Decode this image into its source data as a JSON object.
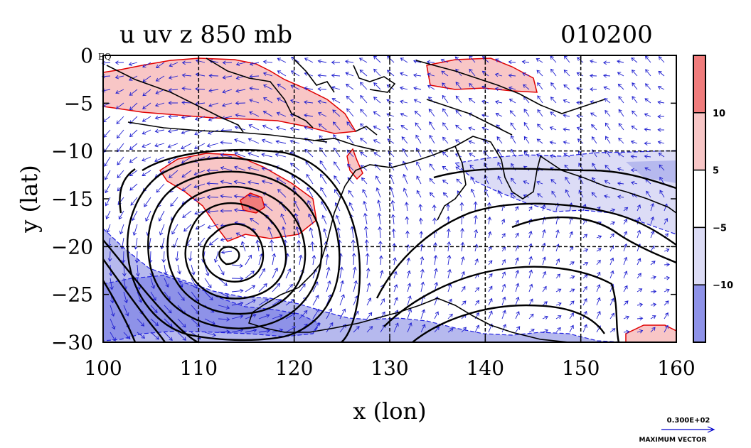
{
  "chart_data": {
    "type": "heatmap",
    "title": "u uv z 850 mb",
    "time_label": "010200",
    "xlabel": "x (lon)",
    "ylabel": "y (lat)",
    "xlim": [
      100,
      160
    ],
    "ylim": [
      -30,
      0
    ],
    "x_ticks": [
      100,
      110,
      120,
      130,
      140,
      150,
      160
    ],
    "y_ticks": [
      0,
      -5,
      -10,
      -15,
      -20,
      -25,
      -30
    ],
    "y_tick_labels": [
      "0",
      "−5",
      "−10",
      "−15",
      "−20",
      "−25",
      "−30"
    ],
    "x_tick_labels": [
      "100",
      "110",
      "120",
      "130",
      "140",
      "150",
      "160"
    ],
    "eq_label": "EQ",
    "grid_x": [
      110,
      120,
      130,
      140,
      150
    ],
    "grid_y": [
      -10,
      -20
    ],
    "colorbar": {
      "levels": [
        -10,
        -5,
        5,
        10
      ],
      "labels": [
        "−10",
        "−5",
        "5",
        "10"
      ],
      "colors": [
        "#8e92e8",
        "#dcdcf6",
        "#ffffff",
        "#f8c6c6",
        "#f07c7c"
      ]
    },
    "vector_legend": {
      "value_label": "0.300E+02",
      "caption": "MAXIMUM VECTOR",
      "color": "#0000cc"
    },
    "colors": {
      "positive_contour": "#e00000",
      "negative_contour": "#0000e0",
      "height_contour": "#000000",
      "vectors": "#1f1fd0",
      "coast": "#000000"
    }
  }
}
